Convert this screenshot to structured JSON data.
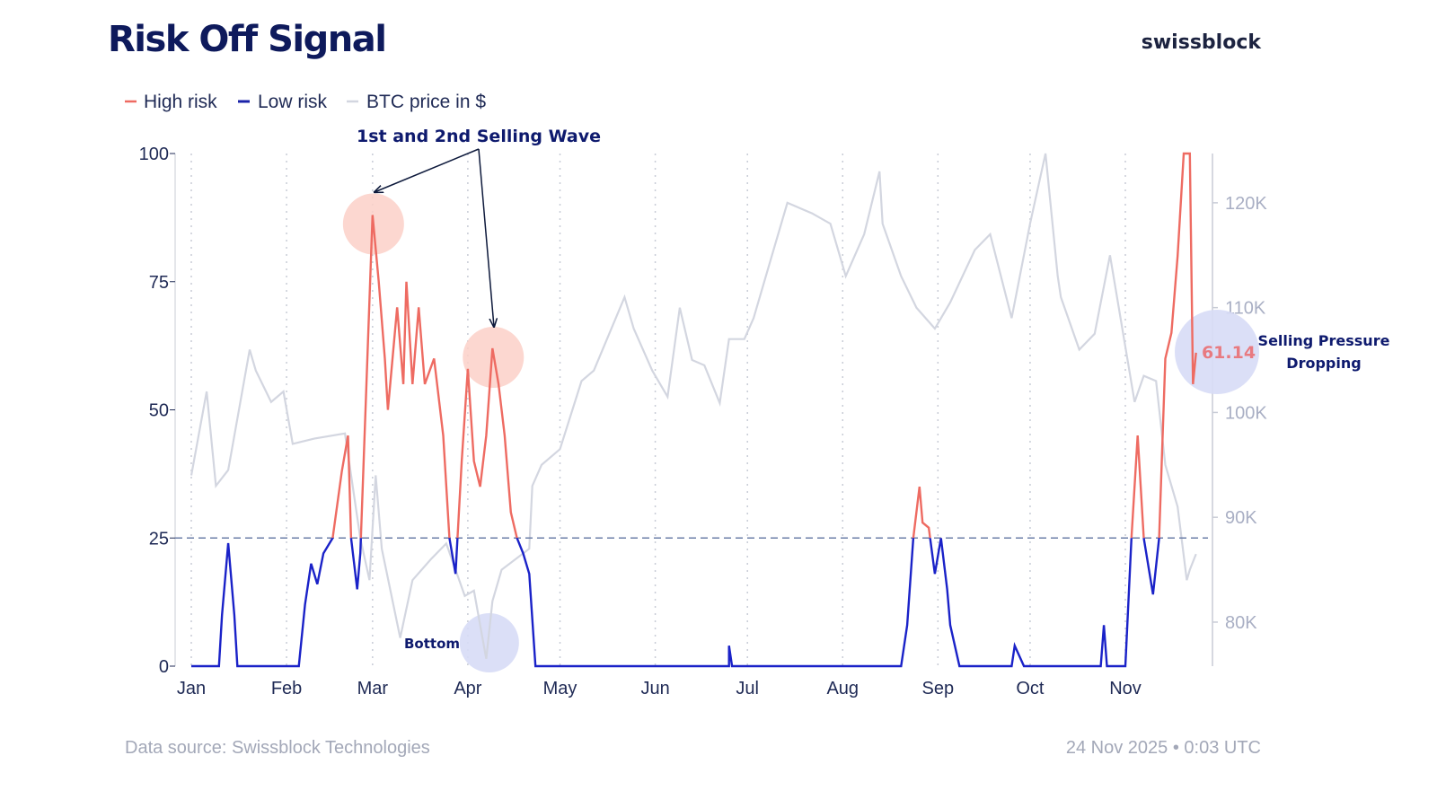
{
  "header": {
    "title": "Risk Off Signal",
    "brand": "swissblock"
  },
  "footer": {
    "source": "Data source: Swissblock Technologies",
    "timestamp": "24 Nov 2025 • 0:03 UTC"
  },
  "colors": {
    "high_risk": "#ee6b62",
    "low_risk": "#1a22c8",
    "btc": "#d3d6e0",
    "threshold": "#6c7fa8",
    "title": "#0e1a5c",
    "red_circle": "#fbd0c8",
    "blue_circle": "#d7dcf6"
  },
  "chart_data": {
    "type": "line",
    "legend": {
      "placement": "top-left",
      "entries": [
        "High risk",
        "Low risk",
        "BTC price in $"
      ]
    },
    "x_ticks": [
      "Jan",
      "Feb",
      "Mar",
      "Apr",
      "May",
      "Jun",
      "Jul",
      "Aug",
      "Sep",
      "Oct",
      "Nov"
    ],
    "x_tick_dates": [
      "2025-01-01",
      "2025-02-01",
      "2025-03-01",
      "2025-04-01",
      "2025-05-01",
      "2025-06-01",
      "2025-07-01",
      "2025-08-01",
      "2025-09-01",
      "2025-10-01",
      "2025-11-01"
    ],
    "xlim": [
      "2025-01-01",
      "2025-11-24"
    ],
    "y_left": {
      "ticks": [
        "0",
        "25",
        "50",
        "75",
        "100"
      ],
      "tick_values": [
        0,
        25,
        50,
        75,
        100
      ],
      "lim": [
        0,
        100
      ]
    },
    "y_right": {
      "ticks": [
        "80K",
        "90K",
        "100K",
        "110K",
        "120K"
      ],
      "tick_values": [
        80000,
        90000,
        100000,
        110000,
        120000
      ],
      "lim": [
        75800,
        124700
      ]
    },
    "threshold": 25,
    "grid": "vertical dotted at months",
    "risk_signal": {
      "high_risk_name": "High risk",
      "low_risk_name": "Low risk",
      "points": [
        [
          "2025-01-01",
          0
        ],
        [
          "2025-01-10",
          0
        ],
        [
          "2025-01-11",
          10
        ],
        [
          "2025-01-13",
          24
        ],
        [
          "2025-01-15",
          10
        ],
        [
          "2025-01-16",
          0
        ],
        [
          "2025-02-05",
          0
        ],
        [
          "2025-02-07",
          12
        ],
        [
          "2025-02-09",
          20
        ],
        [
          "2025-02-11",
          16
        ],
        [
          "2025-02-13",
          22
        ],
        [
          "2025-02-16",
          25
        ],
        [
          "2025-02-19",
          38
        ],
        [
          "2025-02-21",
          45
        ],
        [
          "2025-02-22",
          25
        ],
        [
          "2025-02-24",
          15
        ],
        [
          "2025-02-25",
          22
        ],
        [
          "2025-02-27",
          55
        ],
        [
          "2025-03-01",
          88
        ],
        [
          "2025-03-03",
          75
        ],
        [
          "2025-03-05",
          60
        ],
        [
          "2025-03-06",
          50
        ],
        [
          "2025-03-09",
          70
        ],
        [
          "2025-03-11",
          55
        ],
        [
          "2025-03-12",
          75
        ],
        [
          "2025-03-14",
          55
        ],
        [
          "2025-03-16",
          70
        ],
        [
          "2025-03-18",
          55
        ],
        [
          "2025-03-21",
          60
        ],
        [
          "2025-03-24",
          45
        ],
        [
          "2025-03-26",
          25
        ],
        [
          "2025-03-28",
          18
        ],
        [
          "2025-03-30",
          40
        ],
        [
          "2025-04-01",
          58
        ],
        [
          "2025-04-03",
          40
        ],
        [
          "2025-04-05",
          35
        ],
        [
          "2025-04-07",
          45
        ],
        [
          "2025-04-09",
          62
        ],
        [
          "2025-04-11",
          55
        ],
        [
          "2025-04-13",
          45
        ],
        [
          "2025-04-15",
          30
        ],
        [
          "2025-04-17",
          25
        ],
        [
          "2025-04-19",
          22
        ],
        [
          "2025-04-21",
          18
        ],
        [
          "2025-04-23",
          0
        ],
        [
          "2025-06-25",
          0
        ],
        [
          "2025-06-25",
          4
        ],
        [
          "2025-06-26",
          0
        ],
        [
          "2025-08-20",
          0
        ],
        [
          "2025-08-22",
          8
        ],
        [
          "2025-08-24",
          25
        ],
        [
          "2025-08-26",
          35
        ],
        [
          "2025-08-27",
          28
        ],
        [
          "2025-08-29",
          27
        ],
        [
          "2025-08-31",
          18
        ],
        [
          "2025-09-02",
          25
        ],
        [
          "2025-09-04",
          15
        ],
        [
          "2025-09-05",
          8
        ],
        [
          "2025-09-08",
          0
        ],
        [
          "2025-09-25",
          0
        ],
        [
          "2025-09-26",
          4
        ],
        [
          "2025-09-29",
          0
        ],
        [
          "2025-10-24",
          0
        ],
        [
          "2025-10-25",
          8
        ],
        [
          "2025-10-26",
          0
        ],
        [
          "2025-11-01",
          0
        ],
        [
          "2025-11-03",
          25
        ],
        [
          "2025-11-05",
          45
        ],
        [
          "2025-11-07",
          25
        ],
        [
          "2025-11-10",
          14
        ],
        [
          "2025-11-12",
          25
        ],
        [
          "2025-11-14",
          60
        ],
        [
          "2025-11-16",
          65
        ],
        [
          "2025-11-18",
          80
        ],
        [
          "2025-11-20",
          100
        ],
        [
          "2025-11-22",
          100
        ],
        [
          "2025-11-23",
          55
        ],
        [
          "2025-11-24",
          61.14
        ]
      ]
    },
    "btc_price": {
      "name": "BTC price in $",
      "points": [
        [
          "2025-01-01",
          94000
        ],
        [
          "2025-01-06",
          102000
        ],
        [
          "2025-01-09",
          93000
        ],
        [
          "2025-01-13",
          94500
        ],
        [
          "2025-01-20",
          106000
        ],
        [
          "2025-01-22",
          104000
        ],
        [
          "2025-01-27",
          101000
        ],
        [
          "2025-01-31",
          102000
        ],
        [
          "2025-02-03",
          97000
        ],
        [
          "2025-02-10",
          97500
        ],
        [
          "2025-02-20",
          98000
        ],
        [
          "2025-02-25",
          88000
        ],
        [
          "2025-02-28",
          84000
        ],
        [
          "2025-03-02",
          94000
        ],
        [
          "2025-03-04",
          87000
        ],
        [
          "2025-03-10",
          78500
        ],
        [
          "2025-03-14",
          84000
        ],
        [
          "2025-03-20",
          86000
        ],
        [
          "2025-03-25",
          87500
        ],
        [
          "2025-03-31",
          82500
        ],
        [
          "2025-04-03",
          83000
        ],
        [
          "2025-04-07",
          76500
        ],
        [
          "2025-04-09",
          82000
        ],
        [
          "2025-04-12",
          85000
        ],
        [
          "2025-04-21",
          87000
        ],
        [
          "2025-04-22",
          93000
        ],
        [
          "2025-04-25",
          95000
        ],
        [
          "2025-05-01",
          96500
        ],
        [
          "2025-05-08",
          103000
        ],
        [
          "2025-05-12",
          104000
        ],
        [
          "2025-05-22",
          111000
        ],
        [
          "2025-05-25",
          108000
        ],
        [
          "2025-05-31",
          104000
        ],
        [
          "2025-06-05",
          101500
        ],
        [
          "2025-06-09",
          110000
        ],
        [
          "2025-06-13",
          105000
        ],
        [
          "2025-06-17",
          104500
        ],
        [
          "2025-06-22",
          100900
        ],
        [
          "2025-06-25",
          107000
        ],
        [
          "2025-06-30",
          107000
        ],
        [
          "2025-07-03",
          109000
        ],
        [
          "2025-07-10",
          116000
        ],
        [
          "2025-07-14",
          120000
        ],
        [
          "2025-07-22",
          119000
        ],
        [
          "2025-07-28",
          118000
        ],
        [
          "2025-08-02",
          113000
        ],
        [
          "2025-08-08",
          117000
        ],
        [
          "2025-08-13",
          123000
        ],
        [
          "2025-08-14",
          118000
        ],
        [
          "2025-08-20",
          113000
        ],
        [
          "2025-08-25",
          110000
        ],
        [
          "2025-08-31",
          108000
        ],
        [
          "2025-09-05",
          110500
        ],
        [
          "2025-09-13",
          115500
        ],
        [
          "2025-09-18",
          117000
        ],
        [
          "2025-09-25",
          109000
        ],
        [
          "2025-10-01",
          118000
        ],
        [
          "2025-10-06",
          124700
        ],
        [
          "2025-10-10",
          113000
        ],
        [
          "2025-10-11",
          111000
        ],
        [
          "2025-10-17",
          106000
        ],
        [
          "2025-10-22",
          107500
        ],
        [
          "2025-10-27",
          115000
        ],
        [
          "2025-11-04",
          101000
        ],
        [
          "2025-11-07",
          103500
        ],
        [
          "2025-11-11",
          103000
        ],
        [
          "2025-11-14",
          95000
        ],
        [
          "2025-11-18",
          91000
        ],
        [
          "2025-11-21",
          84000
        ],
        [
          "2025-11-22",
          85000
        ],
        [
          "2025-11-24",
          86500
        ]
      ]
    },
    "annotations": {
      "waves_label": "1st and 2nd Selling Wave",
      "bottom_label": "Bottom",
      "current_value": "61.14",
      "current_label_line1": "Selling Pressure",
      "current_label_line2": "Dropping",
      "wave_dates": [
        "2025-03-01",
        "2025-04-09"
      ],
      "bottom_date": "2025-04-08"
    }
  }
}
